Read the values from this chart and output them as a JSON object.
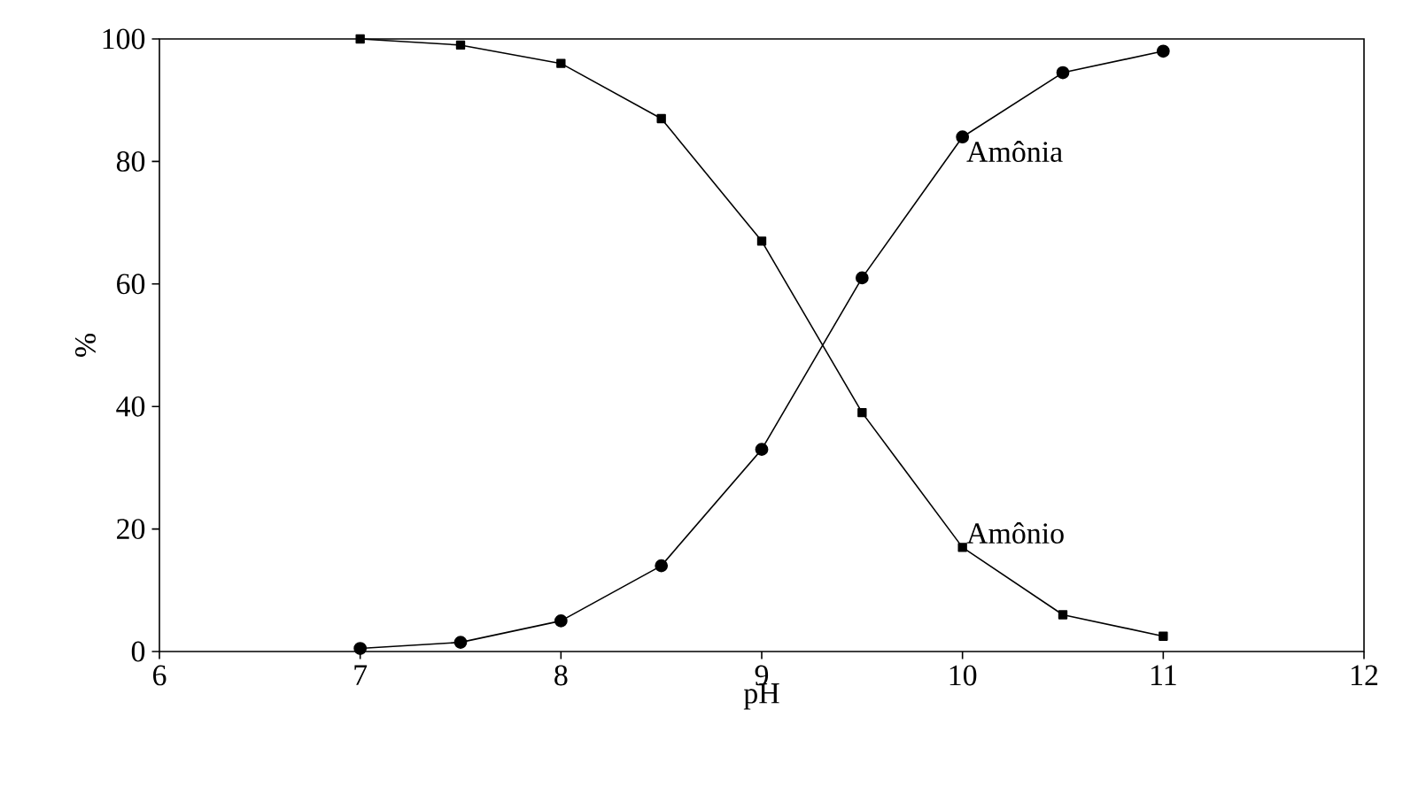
{
  "chart_data": {
    "type": "line",
    "xlabel": "pH",
    "ylabel": "%",
    "xlim": [
      6,
      12
    ],
    "xticks": [
      6,
      7,
      8,
      9,
      10,
      11,
      12
    ],
    "ylim": [
      0,
      100
    ],
    "yticks": [
      0,
      20,
      40,
      60,
      80,
      100
    ],
    "grid": false,
    "legend": false,
    "series": [
      {
        "name": "Amônio",
        "color": "#000000",
        "marker": "square",
        "x": [
          7,
          7.5,
          8,
          8.5,
          9,
          9.5,
          10,
          10.5,
          11
        ],
        "values": [
          100,
          99,
          96,
          87,
          67,
          39,
          17,
          6,
          2.5
        ]
      },
      {
        "name": "Amônia",
        "color": "#000000",
        "marker": "circle",
        "x": [
          7,
          7.5,
          8,
          8.5,
          9,
          9.5,
          10,
          10.5,
          11
        ],
        "values": [
          0.5,
          1.5,
          5,
          14,
          33,
          61,
          84,
          94.5,
          98
        ]
      }
    ]
  }
}
